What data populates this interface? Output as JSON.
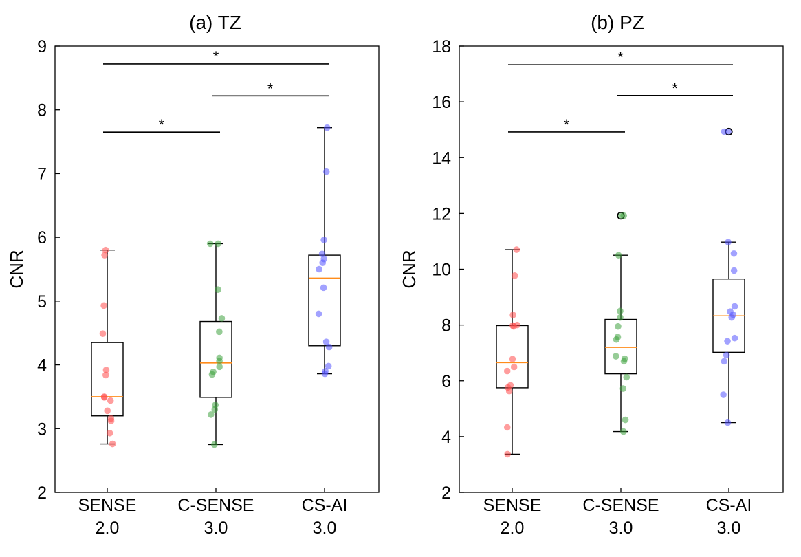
{
  "chart_data": [
    {
      "type": "box",
      "title": "(a) TZ",
      "ylabel": "CNR",
      "xlabel": "",
      "ylim": [
        2,
        9
      ],
      "yticks": [
        2,
        3,
        4,
        5,
        6,
        7,
        8,
        9
      ],
      "categories": [
        {
          "line1": "SENSE",
          "line2": "2.0"
        },
        {
          "line1": "C-SENSE",
          "line2": "3.0"
        },
        {
          "line1": "CS-AI",
          "line2": "3.0"
        }
      ],
      "boxes": [
        {
          "q1": 3.2,
          "median": 3.5,
          "q3": 4.35,
          "whisker_low": 2.76,
          "whisker_high": 5.8,
          "outliers": []
        },
        {
          "q1": 3.49,
          "median": 4.03,
          "q3": 4.68,
          "whisker_low": 2.75,
          "whisker_high": 5.9,
          "outliers": []
        },
        {
          "q1": 4.3,
          "median": 5.36,
          "q3": 5.72,
          "whisker_low": 3.86,
          "whisker_high": 7.72,
          "outliers": []
        }
      ],
      "points": [
        [
          5.8,
          5.72,
          4.93,
          4.49,
          3.92,
          3.84,
          3.5,
          3.49,
          3.44,
          3.28,
          3.16,
          3.12,
          2.93,
          2.76
        ],
        [
          5.9,
          5.9,
          5.18,
          4.73,
          4.52,
          4.11,
          4.06,
          3.97,
          3.89,
          3.85,
          3.37,
          3.3,
          3.22,
          2.75
        ],
        [
          7.72,
          7.03,
          5.96,
          5.74,
          5.66,
          5.6,
          5.5,
          5.21,
          4.8,
          4.36,
          4.28,
          3.98,
          3.9,
          3.86
        ]
      ],
      "significance": [
        {
          "from": 0,
          "to": 1,
          "level": 7.65,
          "label": "*"
        },
        {
          "from": 1,
          "to": 2,
          "level": 8.22,
          "label": "*"
        },
        {
          "from": 0,
          "to": 2,
          "level": 8.72,
          "label": "*"
        }
      ],
      "colors": {
        "points": [
          "#ff4d4d",
          "#3fa33f",
          "#5555ff"
        ],
        "median": "#ff8c1a",
        "box": "#000000"
      }
    },
    {
      "type": "box",
      "title": "(b) PZ",
      "ylabel": "CNR",
      "xlabel": "",
      "ylim": [
        2,
        18
      ],
      "yticks": [
        2,
        4,
        6,
        8,
        10,
        12,
        14,
        16,
        18
      ],
      "categories": [
        {
          "line1": "SENSE",
          "line2": "2.0"
        },
        {
          "line1": "C-SENSE",
          "line2": "3.0"
        },
        {
          "line1": "CS-AI",
          "line2": "3.0"
        }
      ],
      "boxes": [
        {
          "q1": 5.75,
          "median": 6.65,
          "q3": 7.98,
          "whisker_low": 3.37,
          "whisker_high": 10.7,
          "outliers": []
        },
        {
          "q1": 6.25,
          "median": 7.2,
          "q3": 8.2,
          "whisker_low": 4.18,
          "whisker_high": 10.5,
          "outliers": [
            11.92
          ]
        },
        {
          "q1": 7.02,
          "median": 8.33,
          "q3": 9.65,
          "whisker_low": 4.5,
          "whisker_high": 10.97,
          "outliers": [
            14.93
          ]
        }
      ],
      "points": [
        [
          10.7,
          9.77,
          8.36,
          8.0,
          7.98,
          7.95,
          6.78,
          6.5,
          6.35,
          5.84,
          5.76,
          5.63,
          4.33,
          3.37
        ],
        [
          11.92,
          10.5,
          8.5,
          8.27,
          7.95,
          7.57,
          7.48,
          6.88,
          6.79,
          6.7,
          6.13,
          5.72,
          4.6,
          4.18
        ],
        [
          14.93,
          10.97,
          10.56,
          9.95,
          8.67,
          8.48,
          8.37,
          8.27,
          7.53,
          7.42,
          6.92,
          6.7,
          5.5,
          4.5
        ]
      ],
      "significance": [
        {
          "from": 0,
          "to": 1,
          "level": 14.92,
          "label": "*"
        },
        {
          "from": 1,
          "to": 2,
          "level": 16.23,
          "label": "*"
        },
        {
          "from": 0,
          "to": 2,
          "level": 17.33,
          "label": "*"
        }
      ],
      "colors": {
        "points": [
          "#ff4d4d",
          "#3fa33f",
          "#5555ff"
        ],
        "median": "#ff8c1a",
        "box": "#000000"
      }
    }
  ]
}
